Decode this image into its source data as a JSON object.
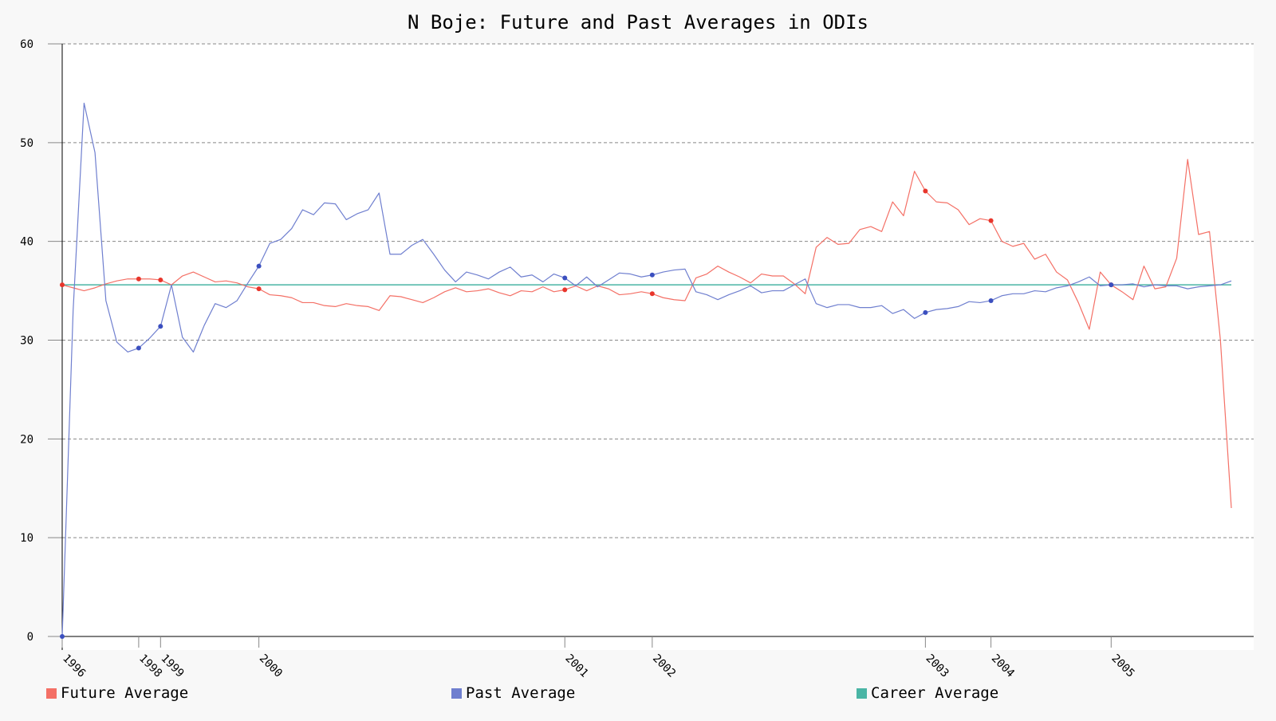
{
  "chart_data": {
    "type": "line",
    "title": "N Boje: Future and Past Averages in ODIs",
    "xlabel": "",
    "ylabel": "",
    "ylim": [
      0,
      60
    ],
    "yticks": [
      0,
      10,
      20,
      30,
      40,
      50,
      60
    ],
    "x_tick_labels": [
      {
        "index": 0,
        "label": "1996"
      },
      {
        "index": 7,
        "label": "1998"
      },
      {
        "index": 9,
        "label": "1999"
      },
      {
        "index": 18,
        "label": "2000"
      },
      {
        "index": 46,
        "label": "2001"
      },
      {
        "index": 54,
        "label": "2002"
      },
      {
        "index": 79,
        "label": "2003"
      },
      {
        "index": 85,
        "label": "2004"
      },
      {
        "index": 96,
        "label": "2005"
      }
    ],
    "series": [
      {
        "name": "Future Average",
        "color": "#f47066",
        "values": [
          35.6,
          35.3,
          35.0,
          35.3,
          35.7,
          36.0,
          36.2,
          36.2,
          36.2,
          36.1,
          35.6,
          36.5,
          36.9,
          36.4,
          35.9,
          36.0,
          35.8,
          35.4,
          35.2,
          34.6,
          34.5,
          34.3,
          33.8,
          33.8,
          33.5,
          33.4,
          33.7,
          33.5,
          33.4,
          33.0,
          34.5,
          34.4,
          34.1,
          33.8,
          34.3,
          34.9,
          35.3,
          34.9,
          35.0,
          35.2,
          34.8,
          34.5,
          35.0,
          34.9,
          35.4,
          34.9,
          35.1,
          35.5,
          35.0,
          35.5,
          35.2,
          34.6,
          34.7,
          34.9,
          34.7,
          34.3,
          34.1,
          34.0,
          36.3,
          36.7,
          37.5,
          36.9,
          36.4,
          35.8,
          36.7,
          36.5,
          36.5,
          35.7,
          34.7,
          39.4,
          40.4,
          39.7,
          39.8,
          41.2,
          41.5,
          41.0,
          44.0,
          42.6,
          47.1,
          45.1,
          44.0,
          43.9,
          43.2,
          41.7,
          42.3,
          42.1,
          40.0,
          39.5,
          39.8,
          38.2,
          38.7,
          36.9,
          36.1,
          33.8,
          31.1,
          36.9,
          35.6,
          34.9,
          34.1,
          37.5,
          35.2,
          35.4,
          38.3,
          48.3,
          40.7,
          41.0,
          30.0,
          13.0
        ],
        "markers": [
          0,
          7,
          9,
          18,
          46,
          54,
          79,
          85,
          96
        ]
      },
      {
        "name": "Past Average",
        "color": "#6f7fcf",
        "values": [
          0,
          33.0,
          54.0,
          49.0,
          34.0,
          29.8,
          28.8,
          29.2,
          30.2,
          31.4,
          35.6,
          30.3,
          28.8,
          31.5,
          33.7,
          33.3,
          34.0,
          35.8,
          37.5,
          39.8,
          40.2,
          41.3,
          43.2,
          42.7,
          43.9,
          43.8,
          42.2,
          42.8,
          43.2,
          44.9,
          38.7,
          38.7,
          39.6,
          40.2,
          38.7,
          37.1,
          35.9,
          36.9,
          36.6,
          36.2,
          36.9,
          37.4,
          36.4,
          36.6,
          35.9,
          36.7,
          36.3,
          35.5,
          36.4,
          35.4,
          36.1,
          36.8,
          36.7,
          36.4,
          36.6,
          36.9,
          37.1,
          37.2,
          34.9,
          34.6,
          34.1,
          34.6,
          35.0,
          35.5,
          34.8,
          35.0,
          35.0,
          35.6,
          36.2,
          33.7,
          33.3,
          33.6,
          33.6,
          33.3,
          33.3,
          33.5,
          32.7,
          33.1,
          32.2,
          32.8,
          33.1,
          33.2,
          33.4,
          33.9,
          33.8,
          34.0,
          34.5,
          34.7,
          34.7,
          35.0,
          34.9,
          35.3,
          35.5,
          35.9,
          36.4,
          35.5,
          35.6,
          35.6,
          35.7,
          35.4,
          35.6,
          35.5,
          35.5,
          35.2,
          35.4,
          35.5,
          35.6,
          36.0
        ],
        "markers": [
          0,
          7,
          9,
          18,
          46,
          54,
          79,
          85,
          96
        ]
      },
      {
        "name": "Career Average",
        "color": "#4ab5a5",
        "values": [
          35.6,
          35.6
        ]
      }
    ]
  }
}
